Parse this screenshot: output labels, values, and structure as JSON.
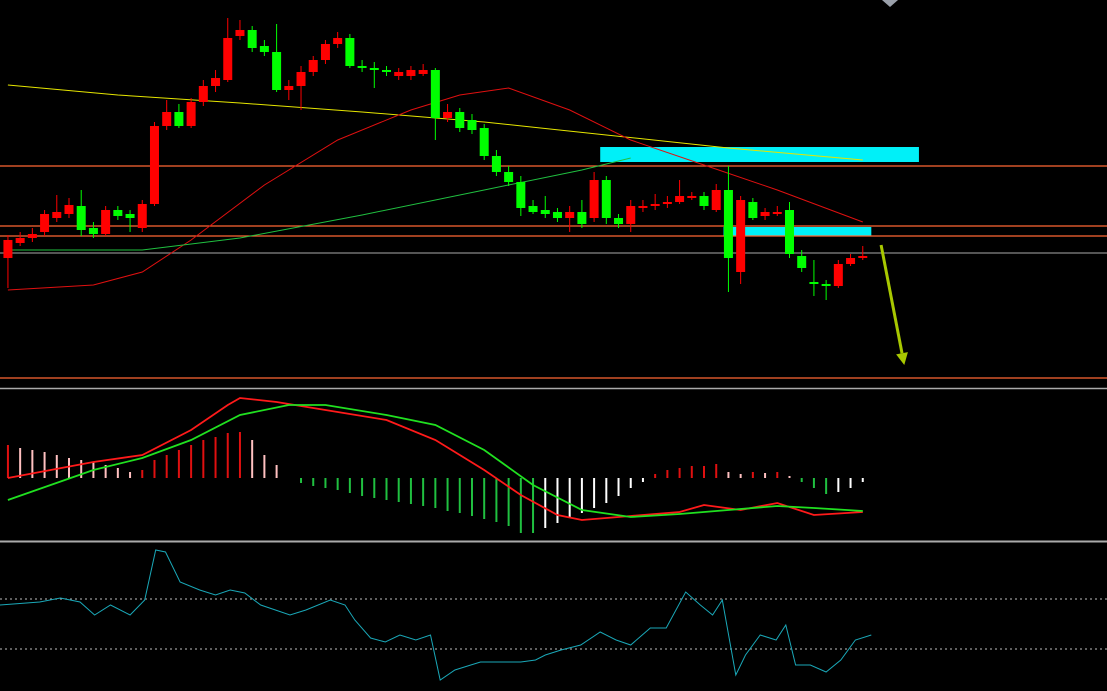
{
  "chart_data": [
    {
      "type": "candlestick",
      "xlim": [
        0.35,
        91
      ],
      "ylim": [
        0,
        390
      ],
      "up_color": "#ff0000",
      "down_color": "#00ff00",
      "open": [
        132,
        147,
        152,
        158,
        172,
        176,
        184,
        162,
        156,
        180,
        176,
        162,
        186,
        264,
        278,
        264,
        288,
        304,
        310,
        354,
        360,
        344,
        338,
        300,
        304,
        318,
        330,
        346,
        352,
        324,
        322,
        320,
        314,
        314,
        316,
        320,
        272,
        278,
        270,
        262,
        234,
        218,
        208,
        184,
        180,
        178,
        172,
        178,
        172,
        210,
        172,
        166,
        182,
        184,
        186,
        188,
        192,
        194,
        180,
        200,
        118,
        188,
        174,
        176,
        180,
        134,
        108,
        106,
        104,
        126,
        132
      ],
      "high": [
        155,
        158,
        162,
        180,
        195,
        192,
        200,
        168,
        184,
        184,
        180,
        190,
        268,
        290,
        286,
        292,
        310,
        320,
        372,
        370,
        364,
        350,
        366,
        310,
        324,
        334,
        350,
        358,
        356,
        330,
        328,
        324,
        322,
        324,
        326,
        322,
        286,
        282,
        276,
        266,
        240,
        224,
        214,
        190,
        194,
        182,
        184,
        190,
        218,
        214,
        176,
        190,
        190,
        196,
        194,
        210,
        198,
        198,
        206,
        224,
        194,
        192,
        182,
        184,
        188,
        140,
        130,
        110,
        130,
        136,
        144
      ],
      "low": [
        102,
        144,
        148,
        154,
        168,
        172,
        154,
        152,
        154,
        170,
        158,
        158,
        184,
        260,
        262,
        262,
        284,
        298,
        308,
        350,
        338,
        334,
        298,
        290,
        280,
        314,
        326,
        342,
        322,
        318,
        302,
        314,
        310,
        310,
        314,
        250,
        268,
        258,
        256,
        230,
        214,
        204,
        174,
        176,
        172,
        168,
        158,
        162,
        168,
        166,
        162,
        158,
        178,
        180,
        182,
        186,
        190,
        180,
        178,
        98,
        106,
        170,
        170,
        174,
        132,
        118,
        94,
        90,
        102,
        124,
        130
      ],
      "close": [
        150,
        152,
        156,
        176,
        178,
        185,
        160,
        156,
        180,
        174,
        172,
        186,
        264,
        278,
        264,
        288,
        304,
        312,
        352,
        360,
        342,
        338,
        300,
        304,
        318,
        330,
        346,
        352,
        324,
        322,
        320,
        318,
        318,
        320,
        320,
        272,
        278,
        262,
        260,
        234,
        218,
        208,
        182,
        178,
        176,
        172,
        178,
        166,
        210,
        172,
        166,
        184,
        184,
        186,
        188,
        194,
        194,
        184,
        200,
        132,
        190,
        172,
        178,
        178,
        136,
        122,
        106,
        104,
        126,
        132,
        134
      ],
      "lines": [
        {
          "color": "#e6e600",
          "x": [
            1,
            10,
            20,
            30,
            40,
            50,
            60,
            71
          ],
          "values": [
            305,
            295,
            287,
            278,
            268,
            255,
            242,
            230
          ]
        },
        {
          "color": "#e01010",
          "x": [
            1,
            8,
            12,
            16,
            22,
            28,
            34,
            38,
            42,
            47,
            52,
            58,
            64,
            71
          ],
          "values": [
            100,
            105,
            118,
            150,
            205,
            250,
            280,
            295,
            302,
            280,
            250,
            225,
            200,
            168
          ]
        },
        {
          "color": "#20c040",
          "x": [
            1,
            12,
            20,
            30,
            40,
            48,
            52
          ],
          "values": [
            140,
            140,
            152,
            175,
            200,
            220,
            232
          ]
        }
      ],
      "hlines": [
        {
          "value": 224,
          "color": "#ff6633"
        },
        {
          "value": 164,
          "color": "#ff6633"
        },
        {
          "value": 154,
          "color": "#ff6633"
        },
        {
          "value": 137,
          "color": "#888888"
        },
        {
          "value": 12,
          "color": "#ff6633"
        }
      ],
      "zones": [
        {
          "x": [
            49.5,
            75.6
          ],
          "low": 228,
          "high": 243,
          "color": "#00f0f8"
        },
        {
          "x": [
            59.6,
            71.7
          ],
          "low": 154,
          "high": 163,
          "color": "#00f0f8"
        }
      ],
      "arrow": {
        "x": [
          72.5,
          74.4
        ],
        "y": [
          145,
          25
        ],
        "color": "#a8c800"
      }
    },
    {
      "type": "bar",
      "xlim": [
        0.35,
        91
      ],
      "ylim": [
        -62,
        88
      ],
      "colors": {
        "pos_up": "#e01010",
        "pos_down": "#ffc0c0",
        "neg_down": "#20c040",
        "neg_up": "#ffffff"
      },
      "values": [
        33,
        30,
        28,
        26,
        23,
        20,
        18,
        16,
        13,
        10,
        6,
        8,
        18,
        23,
        28,
        33,
        38,
        41,
        45,
        46,
        38,
        23,
        13,
        0,
        -5,
        -8,
        -10,
        -12,
        -15,
        -18,
        -20,
        -22,
        -24,
        -26,
        -28,
        -30,
        -33,
        -35,
        -38,
        -41,
        -44,
        -48,
        -55,
        -55,
        -50,
        -45,
        -40,
        -35,
        -30,
        -25,
        -18,
        -10,
        -4,
        4,
        8,
        10,
        12,
        12,
        14,
        6,
        4,
        6,
        5,
        6,
        2,
        -4,
        -10,
        -16,
        -14,
        -10,
        -4
      ],
      "lines": [
        {
          "color": "#ff1a1a",
          "x": [
            1,
            8,
            12,
            16,
            19,
            20,
            23,
            27,
            32,
            36,
            40,
            43,
            46,
            48,
            52,
            56,
            58,
            61,
            64,
            67,
            71
          ],
          "values": [
            0,
            16,
            23,
            48,
            73,
            80,
            76,
            68,
            58,
            38,
            8,
            -17,
            -37,
            -42,
            -38,
            -34,
            -27,
            -32,
            -25,
            -37,
            -34
          ]
        },
        {
          "color": "#20e020",
          "x": [
            1,
            8,
            12,
            16,
            20,
            24,
            27,
            32,
            36,
            40,
            44,
            48,
            52,
            56,
            60,
            64,
            67,
            71
          ],
          "values": [
            -22,
            8,
            20,
            38,
            63,
            73,
            73,
            63,
            53,
            28,
            -7,
            -32,
            -39,
            -36,
            -32,
            -28,
            -30,
            -33
          ]
        }
      ]
    },
    {
      "type": "line",
      "xlim": [
        0.35,
        91
      ],
      "ylim": [
        0,
        148
      ],
      "color": "#1aa8b8",
      "x": [
        0.35,
        3.6,
        5.3,
        6.9,
        8.1,
        9.4,
        11,
        12.2,
        13.1,
        13.9,
        15.1,
        16.7,
        18,
        19.2,
        20.4,
        21.7,
        22.9,
        24.1,
        25.4,
        27.4,
        28.6,
        29.4,
        30.7,
        31.9,
        33.1,
        34.4,
        35.6,
        36.4,
        37.6,
        38.9,
        39.7,
        41.3,
        43,
        44.2,
        45,
        46.3,
        47.9,
        49.5,
        50.8,
        52,
        53.6,
        54.9,
        56.5,
        57.7,
        58.7,
        59.5,
        60.6,
        61.4,
        62.6,
        63.9,
        64.7,
        65.5,
        66.7,
        68,
        69.2,
        70.4,
        71.7
      ],
      "values": [
        86,
        89,
        93,
        89,
        76,
        86,
        76,
        91,
        141,
        139,
        109,
        101,
        96,
        101,
        98,
        86,
        81,
        76,
        81,
        91,
        86,
        71,
        53,
        49,
        56,
        51,
        56,
        11,
        21,
        26,
        29,
        29,
        29,
        31,
        36,
        41,
        46,
        59,
        51,
        46,
        63,
        63,
        99,
        86,
        76,
        91,
        16,
        36,
        56,
        51,
        66,
        26,
        26,
        19,
        31,
        51,
        56
      ],
      "hlines": [
        {
          "value": 92,
          "color": "#999999",
          "dashed": true
        },
        {
          "value": 42,
          "color": "#999999",
          "dashed": true
        }
      ]
    }
  ]
}
